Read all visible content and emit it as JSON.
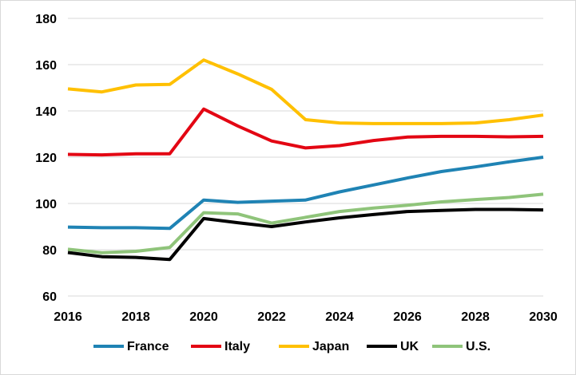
{
  "chart_data": {
    "type": "line",
    "title": "",
    "xlabel": "",
    "ylabel": "",
    "x": [
      2016,
      2017,
      2018,
      2019,
      2020,
      2021,
      2022,
      2023,
      2024,
      2025,
      2026,
      2027,
      2028,
      2029,
      2030
    ],
    "x_tick_labels": [
      "2016",
      "2018",
      "2020",
      "2022",
      "2024",
      "2026",
      "2028",
      "2030"
    ],
    "y_tick_labels": [
      "60",
      "80",
      "100",
      "120",
      "140",
      "160",
      "180"
    ],
    "ylim": [
      60,
      180
    ],
    "xlim": [
      2016,
      2030
    ],
    "grid": "horizontal",
    "legend_position": "bottom",
    "series": [
      {
        "name": "France",
        "color": "#1f83b4",
        "values": [
          89.8,
          89.5,
          89.5,
          89.2,
          101.5,
          100.5,
          101,
          101.5,
          105,
          108,
          111,
          113.8,
          115.8,
          118,
          120
        ]
      },
      {
        "name": "Italy",
        "color": "#e30613",
        "values": [
          121.2,
          121,
          121.5,
          121.5,
          140.8,
          133.5,
          127,
          124,
          125,
          127.2,
          128.7,
          129,
          129,
          128.8,
          129
        ]
      },
      {
        "name": "Japan",
        "color": "#ffc000",
        "values": [
          149.5,
          148.2,
          151.2,
          151.5,
          162,
          156,
          149.3,
          136.2,
          134.8,
          134.5,
          134.5,
          134.5,
          134.8,
          136.2,
          138.2
        ]
      },
      {
        "name": "UK",
        "color": "#000000",
        "values": [
          78.8,
          77,
          76.7,
          75.8,
          93.5,
          91.7,
          90,
          92,
          93.8,
          95.2,
          96.5,
          97,
          97.4,
          97.4,
          97.2
        ]
      },
      {
        "name": "U.S.",
        "color": "#8fc47a",
        "values": [
          80.2,
          78.7,
          79.3,
          81,
          96,
          95.5,
          91.5,
          94,
          96.5,
          98,
          99.2,
          100.7,
          101.7,
          102.6,
          104
        ]
      }
    ]
  }
}
